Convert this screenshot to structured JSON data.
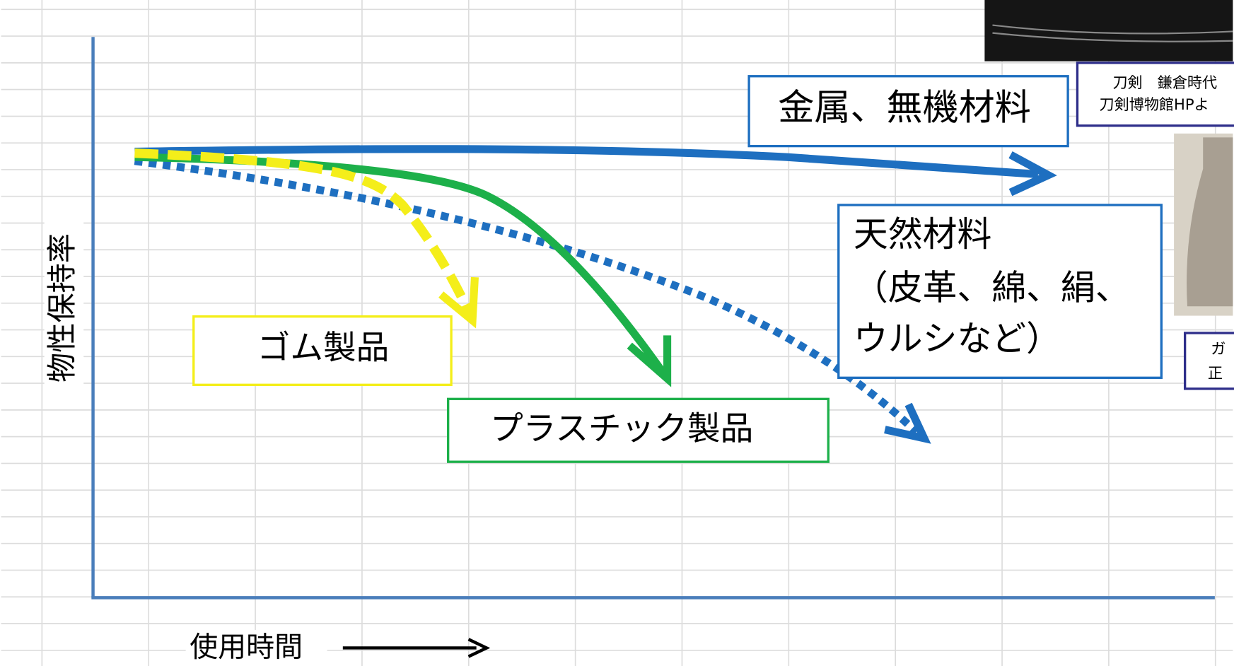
{
  "axis_labels": {
    "y": "物性保持率",
    "x": "使用時間"
  },
  "labels": {
    "metal": "金属、無機材料",
    "natural": [
      "天然材料",
      "（皮革、綿、絹、",
      "ウルシなど）"
    ],
    "rubber": "ゴム製品",
    "plastic": "プラスチック製品"
  },
  "captions": {
    "sword": [
      "刀剣　鎌倉時代",
      "刀剣博物館HPよ"
    ],
    "glass": [
      "ガ",
      "正"
    ]
  }
}
